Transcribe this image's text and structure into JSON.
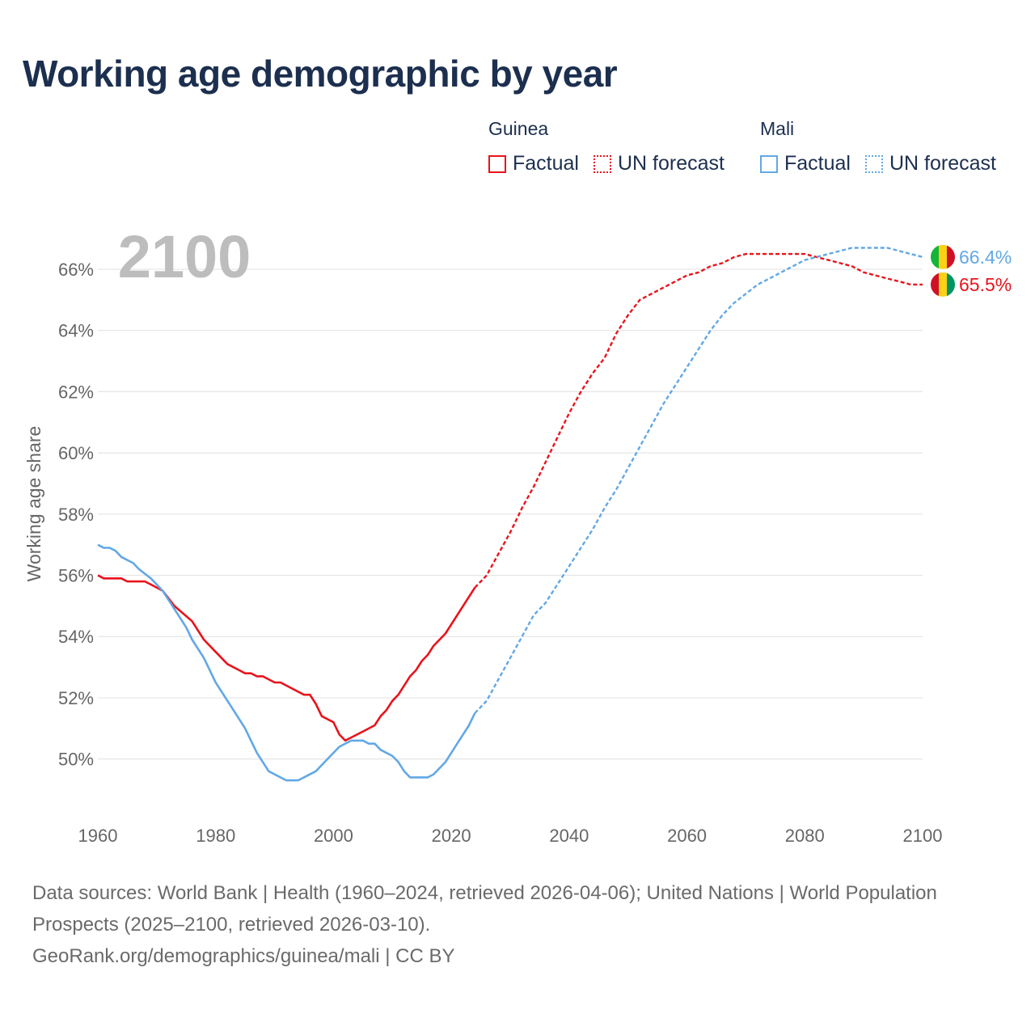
{
  "title": "Working age demographic by year",
  "legend": {
    "groups": [
      {
        "name": "Guinea",
        "factual_label": "Factual",
        "forecast_label": "UN forecast",
        "color": "#e8141c"
      },
      {
        "name": "Mali",
        "factual_label": "Factual",
        "forecast_label": "UN forecast",
        "color": "#62a8e5"
      }
    ]
  },
  "chart_data": {
    "type": "line",
    "title": "Working age demographic by year",
    "xlabel": "",
    "ylabel": "Working age share",
    "xlim": [
      1960,
      2100
    ],
    "ylim": [
      48.3,
      67.4
    ],
    "x_ticks": [
      1960,
      1980,
      2000,
      2020,
      2040,
      2060,
      2080,
      2100
    ],
    "y_ticks": [
      50,
      52,
      54,
      56,
      58,
      60,
      62,
      64,
      66
    ],
    "y_tick_suffix": "%",
    "grid": true,
    "year_label": "2100",
    "factual_range": [
      1960,
      2024
    ],
    "forecast_range": [
      2024,
      2100
    ],
    "series": [
      {
        "name": "Guinea",
        "color": "#e8141c",
        "end_label": "65.5%",
        "flag_colors": [
          "#ce1126",
          "#fcd116",
          "#009460"
        ],
        "points": [
          [
            1960,
            56.0
          ],
          [
            1961,
            55.9
          ],
          [
            1964,
            55.9
          ],
          [
            1965,
            55.8
          ],
          [
            1968,
            55.8
          ],
          [
            1969,
            55.7
          ],
          [
            1971,
            55.5
          ],
          [
            1973,
            55.0
          ],
          [
            1976,
            54.5
          ],
          [
            1978,
            53.9
          ],
          [
            1980,
            53.5
          ],
          [
            1982,
            53.1
          ],
          [
            1984,
            52.9
          ],
          [
            1985,
            52.8
          ],
          [
            1986,
            52.8
          ],
          [
            1987,
            52.7
          ],
          [
            1988,
            52.7
          ],
          [
            1990,
            52.5
          ],
          [
            1991,
            52.5
          ],
          [
            1993,
            52.3
          ],
          [
            1995,
            52.1
          ],
          [
            1996,
            52.1
          ],
          [
            1997,
            51.8
          ],
          [
            1998,
            51.4
          ],
          [
            2000,
            51.2
          ],
          [
            2001,
            50.8
          ],
          [
            2002,
            50.6
          ],
          [
            2005,
            50.9
          ],
          [
            2007,
            51.1
          ],
          [
            2008,
            51.4
          ],
          [
            2009,
            51.6
          ],
          [
            2010,
            51.9
          ],
          [
            2011,
            52.1
          ],
          [
            2012,
            52.4
          ],
          [
            2013,
            52.7
          ],
          [
            2014,
            52.9
          ],
          [
            2015,
            53.2
          ],
          [
            2016,
            53.4
          ],
          [
            2017,
            53.7
          ],
          [
            2019,
            54.1
          ],
          [
            2022,
            55.0
          ],
          [
            2024,
            55.6
          ],
          [
            2026,
            56.0
          ],
          [
            2028,
            56.7
          ],
          [
            2030,
            57.4
          ],
          [
            2032,
            58.2
          ],
          [
            2034,
            58.9
          ],
          [
            2036,
            59.7
          ],
          [
            2038,
            60.5
          ],
          [
            2040,
            61.3
          ],
          [
            2042,
            62.0
          ],
          [
            2044,
            62.6
          ],
          [
            2046,
            63.1
          ],
          [
            2048,
            63.9
          ],
          [
            2050,
            64.5
          ],
          [
            2052,
            65.0
          ],
          [
            2054,
            65.2
          ],
          [
            2056,
            65.4
          ],
          [
            2058,
            65.6
          ],
          [
            2060,
            65.8
          ],
          [
            2062,
            65.9
          ],
          [
            2064,
            66.1
          ],
          [
            2066,
            66.2
          ],
          [
            2068,
            66.4
          ],
          [
            2070,
            66.5
          ],
          [
            2072,
            66.5
          ],
          [
            2080,
            66.5
          ],
          [
            2082,
            66.4
          ],
          [
            2084,
            66.3
          ],
          [
            2086,
            66.2
          ],
          [
            2088,
            66.1
          ],
          [
            2090,
            65.9
          ],
          [
            2092,
            65.8
          ],
          [
            2094,
            65.7
          ],
          [
            2096,
            65.6
          ],
          [
            2098,
            65.5
          ],
          [
            2100,
            65.5
          ]
        ]
      },
      {
        "name": "Mali",
        "color": "#62a8e5",
        "end_label": "66.4%",
        "flag_colors": [
          "#14b53a",
          "#fcd116",
          "#ce1126"
        ],
        "points": [
          [
            1960,
            57.0
          ],
          [
            1961,
            56.9
          ],
          [
            1962,
            56.9
          ],
          [
            1963,
            56.8
          ],
          [
            1964,
            56.6
          ],
          [
            1966,
            56.4
          ],
          [
            1967,
            56.2
          ],
          [
            1969,
            55.9
          ],
          [
            1971,
            55.5
          ],
          [
            1973,
            54.9
          ],
          [
            1975,
            54.3
          ],
          [
            1976,
            53.9
          ],
          [
            1978,
            53.3
          ],
          [
            1980,
            52.5
          ],
          [
            1982,
            51.9
          ],
          [
            1984,
            51.3
          ],
          [
            1985,
            51.0
          ],
          [
            1987,
            50.2
          ],
          [
            1989,
            49.6
          ],
          [
            1992,
            49.3
          ],
          [
            1994,
            49.3
          ],
          [
            1997,
            49.6
          ],
          [
            1999,
            50.0
          ],
          [
            2001,
            50.4
          ],
          [
            2003,
            50.6
          ],
          [
            2005,
            50.6
          ],
          [
            2006,
            50.5
          ],
          [
            2007,
            50.5
          ],
          [
            2008,
            50.3
          ],
          [
            2010,
            50.1
          ],
          [
            2011,
            49.9
          ],
          [
            2012,
            49.6
          ],
          [
            2013,
            49.4
          ],
          [
            2016,
            49.4
          ],
          [
            2017,
            49.5
          ],
          [
            2019,
            49.9
          ],
          [
            2021,
            50.5
          ],
          [
            2023,
            51.1
          ],
          [
            2024,
            51.5
          ],
          [
            2026,
            51.9
          ],
          [
            2028,
            52.6
          ],
          [
            2030,
            53.3
          ],
          [
            2032,
            54.0
          ],
          [
            2034,
            54.7
          ],
          [
            2036,
            55.1
          ],
          [
            2038,
            55.7
          ],
          [
            2040,
            56.3
          ],
          [
            2042,
            56.9
          ],
          [
            2044,
            57.5
          ],
          [
            2046,
            58.2
          ],
          [
            2048,
            58.8
          ],
          [
            2050,
            59.5
          ],
          [
            2052,
            60.2
          ],
          [
            2054,
            60.9
          ],
          [
            2056,
            61.6
          ],
          [
            2058,
            62.2
          ],
          [
            2060,
            62.8
          ],
          [
            2062,
            63.4
          ],
          [
            2064,
            64.0
          ],
          [
            2066,
            64.5
          ],
          [
            2068,
            64.9
          ],
          [
            2070,
            65.2
          ],
          [
            2072,
            65.5
          ],
          [
            2074,
            65.7
          ],
          [
            2076,
            65.9
          ],
          [
            2078,
            66.1
          ],
          [
            2080,
            66.3
          ],
          [
            2082,
            66.4
          ],
          [
            2084,
            66.5
          ],
          [
            2086,
            66.6
          ],
          [
            2088,
            66.7
          ],
          [
            2094,
            66.7
          ],
          [
            2096,
            66.6
          ],
          [
            2098,
            66.5
          ],
          [
            2100,
            66.4
          ]
        ]
      }
    ]
  },
  "footer": {
    "sources": "Data sources: World Bank | Health (1960–2024, retrieved 2026-04-06); United Nations | World Population Prospects (2025–2100, retrieved 2026-03-10).",
    "url": "GeoRank.org/demographics/guinea/mali | CC BY"
  }
}
